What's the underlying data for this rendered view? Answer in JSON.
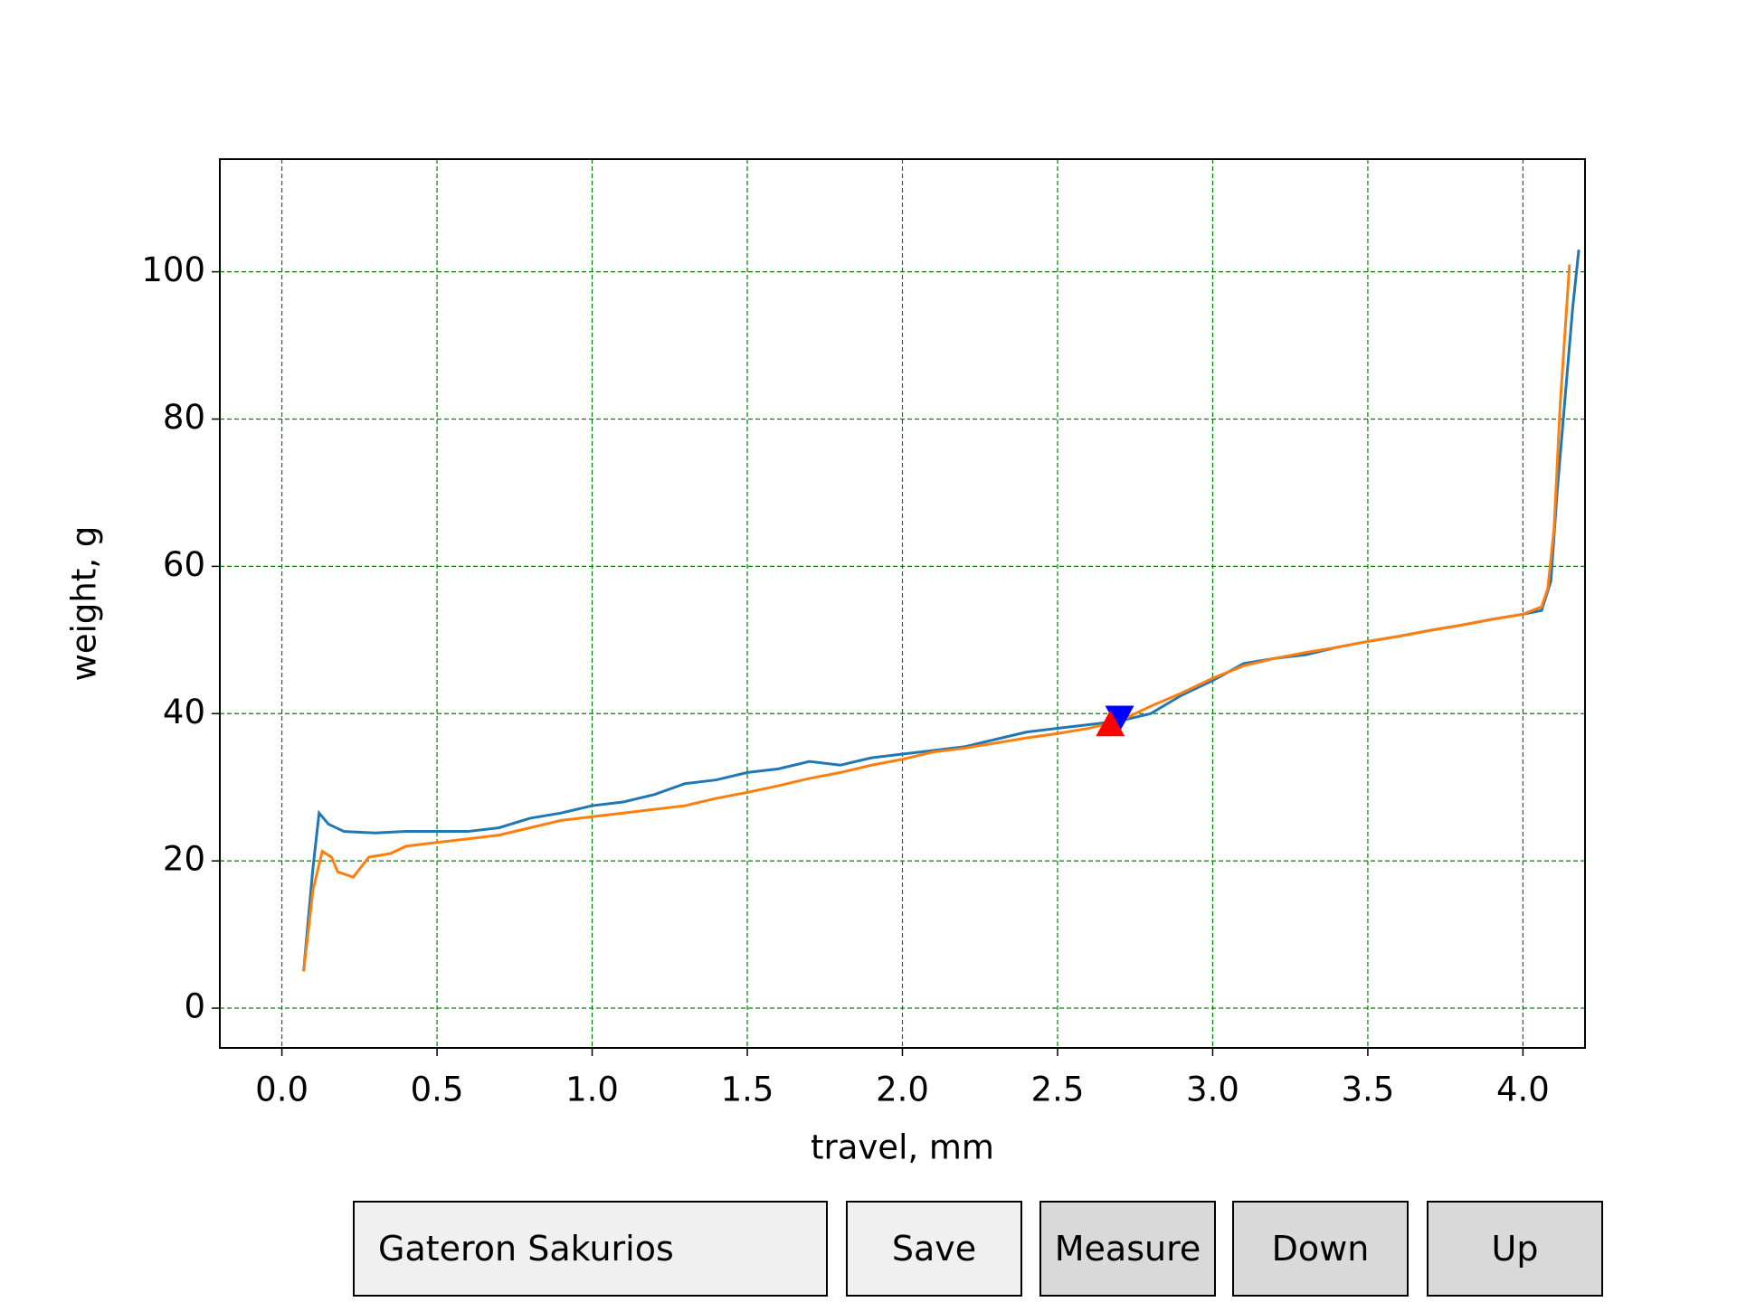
{
  "chart_data": {
    "type": "line",
    "xlabel": "travel, mm",
    "ylabel": "weight, g",
    "xlim": [
      -0.2,
      4.2
    ],
    "ylim": [
      -5.4,
      115.3
    ],
    "xticks": [
      {
        "value": 0,
        "label": "0.0"
      },
      0.5,
      {
        "value": 1,
        "label": "1.0"
      },
      1.5,
      {
        "value": 2,
        "label": "2.0"
      },
      2.5,
      {
        "value": 3,
        "label": "3.0"
      },
      3.5,
      {
        "value": 4,
        "label": "4.0"
      }
    ],
    "yticks": [
      0,
      20,
      40,
      60,
      80,
      100
    ],
    "grid": true,
    "grid_color": "#008000",
    "series": [
      {
        "color": "#1f77b4",
        "x": [
          0.07,
          0.1,
          0.12,
          0.15,
          0.2,
          0.3,
          0.4,
          0.5,
          0.6,
          0.7,
          0.8,
          0.9,
          1.0,
          1.1,
          1.2,
          1.3,
          1.4,
          1.5,
          1.6,
          1.7,
          1.8,
          1.9,
          2.0,
          2.1,
          2.2,
          2.3,
          2.4,
          2.5,
          2.6,
          2.7,
          2.8,
          2.9,
          3.0,
          3.1,
          3.2,
          3.3,
          3.4,
          3.5,
          3.6,
          3.7,
          3.8,
          3.9,
          4.0,
          4.06,
          4.09,
          4.11,
          4.14,
          4.16,
          4.18
        ],
        "values": [
          5,
          19,
          26.5,
          25,
          24,
          23.8,
          24,
          24,
          24,
          24.5,
          25.8,
          26.5,
          27.5,
          28,
          29,
          30.5,
          31,
          32,
          32.5,
          33.5,
          33,
          34,
          34.5,
          35,
          35.5,
          36.5,
          37.5,
          38,
          38.5,
          39,
          40,
          42.5,
          44.5,
          46.8,
          47.5,
          48,
          49,
          49.8,
          50.5,
          51.3,
          52,
          52.8,
          53.5,
          54,
          58,
          70,
          85,
          95,
          103
        ]
      },
      {
        "color": "#ff7f0e",
        "x": [
          0.07,
          0.1,
          0.13,
          0.16,
          0.18,
          0.23,
          0.28,
          0.35,
          0.4,
          0.5,
          0.6,
          0.7,
          0.8,
          0.9,
          1.0,
          1.1,
          1.2,
          1.3,
          1.4,
          1.5,
          1.6,
          1.7,
          1.8,
          1.9,
          2.0,
          2.1,
          2.2,
          2.3,
          2.4,
          2.5,
          2.6,
          2.7,
          2.8,
          2.9,
          3.0,
          3.1,
          3.2,
          3.3,
          3.4,
          3.5,
          3.6,
          3.7,
          3.8,
          3.9,
          4.0,
          4.06,
          4.08,
          4.1,
          4.12,
          4.15
        ],
        "values": [
          5,
          16,
          21.3,
          20.5,
          18.5,
          17.8,
          20.5,
          21,
          22,
          22.5,
          23,
          23.5,
          24.5,
          25.5,
          26,
          26.5,
          27,
          27.5,
          28.5,
          29.3,
          30.2,
          31.2,
          32,
          33,
          33.8,
          34.8,
          35.3,
          36,
          36.7,
          37.3,
          38,
          39,
          41,
          42.8,
          44.8,
          46.5,
          47.5,
          48.3,
          49,
          49.8,
          50.5,
          51.3,
          52,
          52.8,
          53.5,
          54.5,
          57,
          65,
          82,
          101
        ]
      },
      {
        "color": "#0000ff",
        "marker": "triangle-down",
        "x": [
          2.7
        ],
        "values": [
          39.5
        ]
      },
      {
        "color": "#ff0000",
        "marker": "triangle-up",
        "x": [
          2.67
        ],
        "values": [
          38.5
        ]
      }
    ]
  },
  "controls": {
    "textbox": "Gateron Sakurios",
    "buttons": [
      "Save",
      "Measure",
      "Down",
      "Up"
    ]
  }
}
